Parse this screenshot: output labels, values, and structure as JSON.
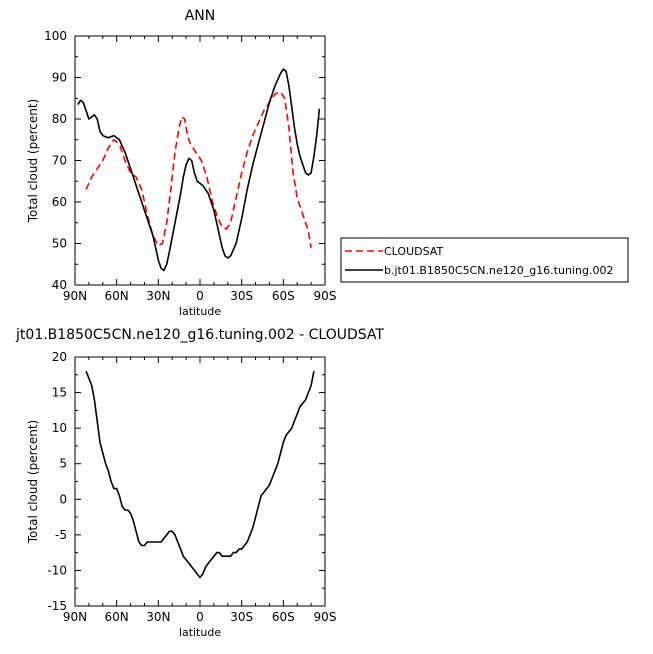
{
  "chart_data": [
    {
      "type": "line",
      "title": "ANN",
      "xlabel": "latitude",
      "ylabel": "Total cloud (percent)",
      "xlim": [
        90,
        -90
      ],
      "ylim": [
        40,
        100
      ],
      "x_ticks": [
        90,
        60,
        30,
        0,
        -30,
        -60,
        -90
      ],
      "x_tick_labels": [
        "90N",
        "60N",
        "30N",
        "0",
        "30S",
        "60S",
        "90S"
      ],
      "y_ticks": [
        40,
        50,
        60,
        70,
        80,
        90,
        100
      ],
      "y_tick_labels": [
        "40",
        "50",
        "60",
        "70",
        "80",
        "90",
        "100"
      ],
      "grid": false,
      "legend": "right-outside",
      "series": [
        {
          "name": "CLOUDSAT",
          "color": "#ff0000",
          "style": "dashed",
          "points": [
            [
              82,
              63
            ],
            [
              78,
              66
            ],
            [
              74,
              68
            ],
            [
              70,
              70
            ],
            [
              66,
              73
            ],
            [
              62,
              75
            ],
            [
              58,
              74
            ],
            [
              54,
              70
            ],
            [
              50,
              67
            ],
            [
              46,
              66
            ],
            [
              42,
              63
            ],
            [
              38,
              57
            ],
            [
              34,
              52
            ],
            [
              30,
              49.5
            ],
            [
              27,
              50
            ],
            [
              24,
              55
            ],
            [
              21,
              63
            ],
            [
              18,
              72
            ],
            [
              15,
              78
            ],
            [
              13,
              80.5
            ],
            [
              11,
              80
            ],
            [
              9,
              76
            ],
            [
              7,
              74
            ],
            [
              3,
              72
            ],
            [
              -1,
              70
            ],
            [
              -5,
              66
            ],
            [
              -9,
              60
            ],
            [
              -13,
              56
            ],
            [
              -16,
              54
            ],
            [
              -19,
              53.5
            ],
            [
              -22,
              55
            ],
            [
              -26,
              61
            ],
            [
              -30,
              67
            ],
            [
              -34,
              72
            ],
            [
              -38,
              76
            ],
            [
              -42,
              79
            ],
            [
              -46,
              82
            ],
            [
              -50,
              84
            ],
            [
              -54,
              86
            ],
            [
              -58,
              86.5
            ],
            [
              -61,
              85
            ],
            [
              -64,
              78
            ],
            [
              -67,
              67
            ],
            [
              -70,
              61
            ],
            [
              -74,
              57
            ],
            [
              -78,
              53
            ],
            [
              -80,
              49
            ]
          ]
        },
        {
          "name": "b.jt01.B1850C5CN.ne120_g16.tuning.002",
          "color": "#000000",
          "style": "solid",
          "points": [
            [
              88,
              83.5
            ],
            [
              86,
              84.5
            ],
            [
              84,
              84
            ],
            [
              82,
              82
            ],
            [
              80,
              80
            ],
            [
              78,
              80.5
            ],
            [
              76,
              81
            ],
            [
              74,
              80
            ],
            [
              72,
              77
            ],
            [
              70,
              76
            ],
            [
              66,
              75.5
            ],
            [
              62,
              76
            ],
            [
              58,
              75
            ],
            [
              54,
              72
            ],
            [
              50,
              68
            ],
            [
              46,
              64
            ],
            [
              42,
              60
            ],
            [
              38,
              56
            ],
            [
              34,
              52
            ],
            [
              32,
              49
            ],
            [
              30,
              46
            ],
            [
              28,
              44
            ],
            [
              26,
              43.5
            ],
            [
              24,
              45
            ],
            [
              22,
              48
            ],
            [
              18,
              55
            ],
            [
              14,
              62
            ],
            [
              12,
              66
            ],
            [
              10,
              69
            ],
            [
              8,
              70.5
            ],
            [
              6,
              70
            ],
            [
              4,
              67
            ],
            [
              2,
              65
            ],
            [
              -2,
              64
            ],
            [
              -6,
              62
            ],
            [
              -10,
              58
            ],
            [
              -14,
              52
            ],
            [
              -16,
              49
            ],
            [
              -18,
              47
            ],
            [
              -20,
              46.5
            ],
            [
              -22,
              47
            ],
            [
              -26,
              50
            ],
            [
              -30,
              56
            ],
            [
              -34,
              63
            ],
            [
              -38,
              69
            ],
            [
              -42,
              74
            ],
            [
              -46,
              79
            ],
            [
              -50,
              84
            ],
            [
              -54,
              88
            ],
            [
              -58,
              91
            ],
            [
              -60,
              92
            ],
            [
              -62,
              91.5
            ],
            [
              -64,
              88
            ],
            [
              -66,
              83
            ],
            [
              -68,
              78
            ],
            [
              -70,
              74
            ],
            [
              -72,
              71
            ],
            [
              -74,
              69
            ],
            [
              -76,
              67
            ],
            [
              -78,
              66.5
            ],
            [
              -80,
              67
            ],
            [
              -82,
              71
            ],
            [
              -84,
              76
            ],
            [
              -86,
              82.5
            ]
          ]
        }
      ]
    },
    {
      "type": "line",
      "title": "jt01.B1850C5CN.ne120_g16.tuning.002 - CLOUDSAT",
      "xlabel": "latitude",
      "ylabel": "Total cloud (percent)",
      "xlim": [
        90,
        -90
      ],
      "ylim": [
        -15,
        20
      ],
      "x_ticks": [
        90,
        60,
        30,
        0,
        -30,
        -60,
        -90
      ],
      "x_tick_labels": [
        "90N",
        "60N",
        "30N",
        "0",
        "30S",
        "60S",
        "90S"
      ],
      "y_ticks": [
        -15,
        -10,
        -5,
        0,
        5,
        10,
        15,
        20
      ],
      "y_tick_labels": [
        "-15",
        "-10",
        "-5",
        "0",
        "5",
        "10",
        "15",
        "20"
      ],
      "grid": false,
      "series": [
        {
          "color": "#000000",
          "style": "solid",
          "points": [
            [
              82,
              18
            ],
            [
              80,
              17
            ],
            [
              78,
              16
            ],
            [
              76,
              14
            ],
            [
              74,
              11
            ],
            [
              72,
              8
            ],
            [
              70,
              6.5
            ],
            [
              68,
              5
            ],
            [
              66,
              4
            ],
            [
              64,
              2.5
            ],
            [
              62,
              1.5
            ],
            [
              60,
              1.5
            ],
            [
              58,
              0.5
            ],
            [
              56,
              -1
            ],
            [
              54,
              -1.5
            ],
            [
              52,
              -1.5
            ],
            [
              50,
              -2
            ],
            [
              48,
              -3
            ],
            [
              46,
              -4.5
            ],
            [
              44,
              -6
            ],
            [
              42,
              -6.5
            ],
            [
              40,
              -6.5
            ],
            [
              38,
              -6
            ],
            [
              36,
              -6
            ],
            [
              34,
              -6
            ],
            [
              32,
              -6
            ],
            [
              30,
              -6
            ],
            [
              28,
              -6
            ],
            [
              26,
              -5.5
            ],
            [
              24,
              -5
            ],
            [
              22,
              -4.5
            ],
            [
              20,
              -4.5
            ],
            [
              18,
              -5
            ],
            [
              16,
              -6
            ],
            [
              14,
              -7
            ],
            [
              12,
              -8
            ],
            [
              10,
              -8.5
            ],
            [
              8,
              -9
            ],
            [
              6,
              -9.5
            ],
            [
              4,
              -10
            ],
            [
              2,
              -10.5
            ],
            [
              0,
              -11
            ],
            [
              -2,
              -10.5
            ],
            [
              -4,
              -9.5
            ],
            [
              -6,
              -9
            ],
            [
              -8,
              -8.5
            ],
            [
              -10,
              -8
            ],
            [
              -12,
              -7.5
            ],
            [
              -14,
              -7.5
            ],
            [
              -16,
              -8
            ],
            [
              -18,
              -8
            ],
            [
              -20,
              -8
            ],
            [
              -22,
              -8
            ],
            [
              -24,
              -7.5
            ],
            [
              -26,
              -7.5
            ],
            [
              -28,
              -7
            ],
            [
              -30,
              -7
            ],
            [
              -32,
              -6.5
            ],
            [
              -34,
              -6
            ],
            [
              -36,
              -5
            ],
            [
              -38,
              -4
            ],
            [
              -40,
              -2.5
            ],
            [
              -42,
              -1
            ],
            [
              -44,
              0.5
            ],
            [
              -46,
              1
            ],
            [
              -48,
              1.5
            ],
            [
              -50,
              2
            ],
            [
              -52,
              3
            ],
            [
              -54,
              4
            ],
            [
              -56,
              5
            ],
            [
              -58,
              6.5
            ],
            [
              -60,
              8
            ],
            [
              -62,
              9
            ],
            [
              -64,
              9.5
            ],
            [
              -66,
              10
            ],
            [
              -68,
              11
            ],
            [
              -70,
              12
            ],
            [
              -72,
              13
            ],
            [
              -74,
              13.5
            ],
            [
              -76,
              14
            ],
            [
              -78,
              15
            ],
            [
              -80,
              16
            ],
            [
              -82,
              18
            ]
          ]
        }
      ]
    }
  ]
}
